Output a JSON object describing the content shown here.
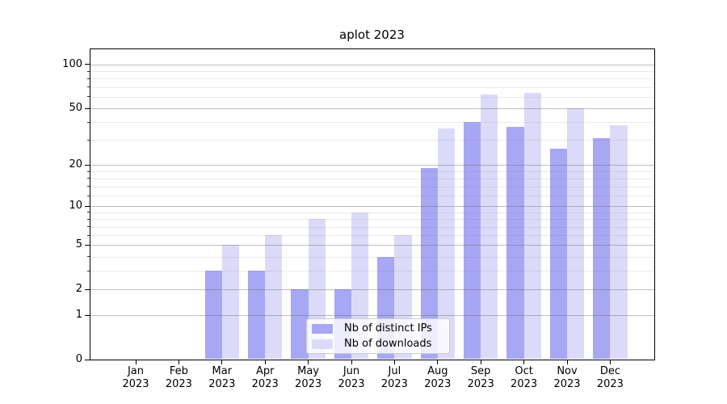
{
  "chart_data": {
    "type": "bar",
    "title": "aplot 2023",
    "categories": [
      "Jan 2023",
      "Feb 2023",
      "Mar 2023",
      "Apr 2023",
      "May 2023",
      "Jun 2023",
      "Jul 2023",
      "Aug 2023",
      "Sep 2023",
      "Oct 2023",
      "Nov 2023",
      "Dec 2023"
    ],
    "series": [
      {
        "name": "Nb of distinct IPs",
        "color": "#a7a7f4",
        "values": [
          0,
          0,
          3,
          3,
          2,
          2,
          4,
          19,
          40,
          37,
          26,
          31
        ]
      },
      {
        "name": "Nb of downloads",
        "color": "#dbdbf9",
        "values": [
          0,
          0,
          5,
          6,
          8,
          9,
          6,
          36,
          62,
          64,
          50,
          38
        ]
      }
    ],
    "xlabel": "",
    "ylabel": "",
    "yscale": "log1p",
    "ylim": [
      0,
      129
    ],
    "y_major_ticks": [
      0,
      1,
      2,
      5,
      10,
      20,
      50,
      100
    ],
    "y_minor_ticks": [
      3,
      4,
      6,
      7,
      8,
      9,
      12,
      14,
      16,
      18,
      30,
      40,
      60,
      70,
      80,
      90
    ],
    "grid": true,
    "legend_position": "lower center",
    "colors": {
      "background": "#ffffff",
      "spine": "#000000",
      "grid_major": "#b9b9b9",
      "grid_minor": "#ececec",
      "legend_border": "#cccccc"
    }
  }
}
